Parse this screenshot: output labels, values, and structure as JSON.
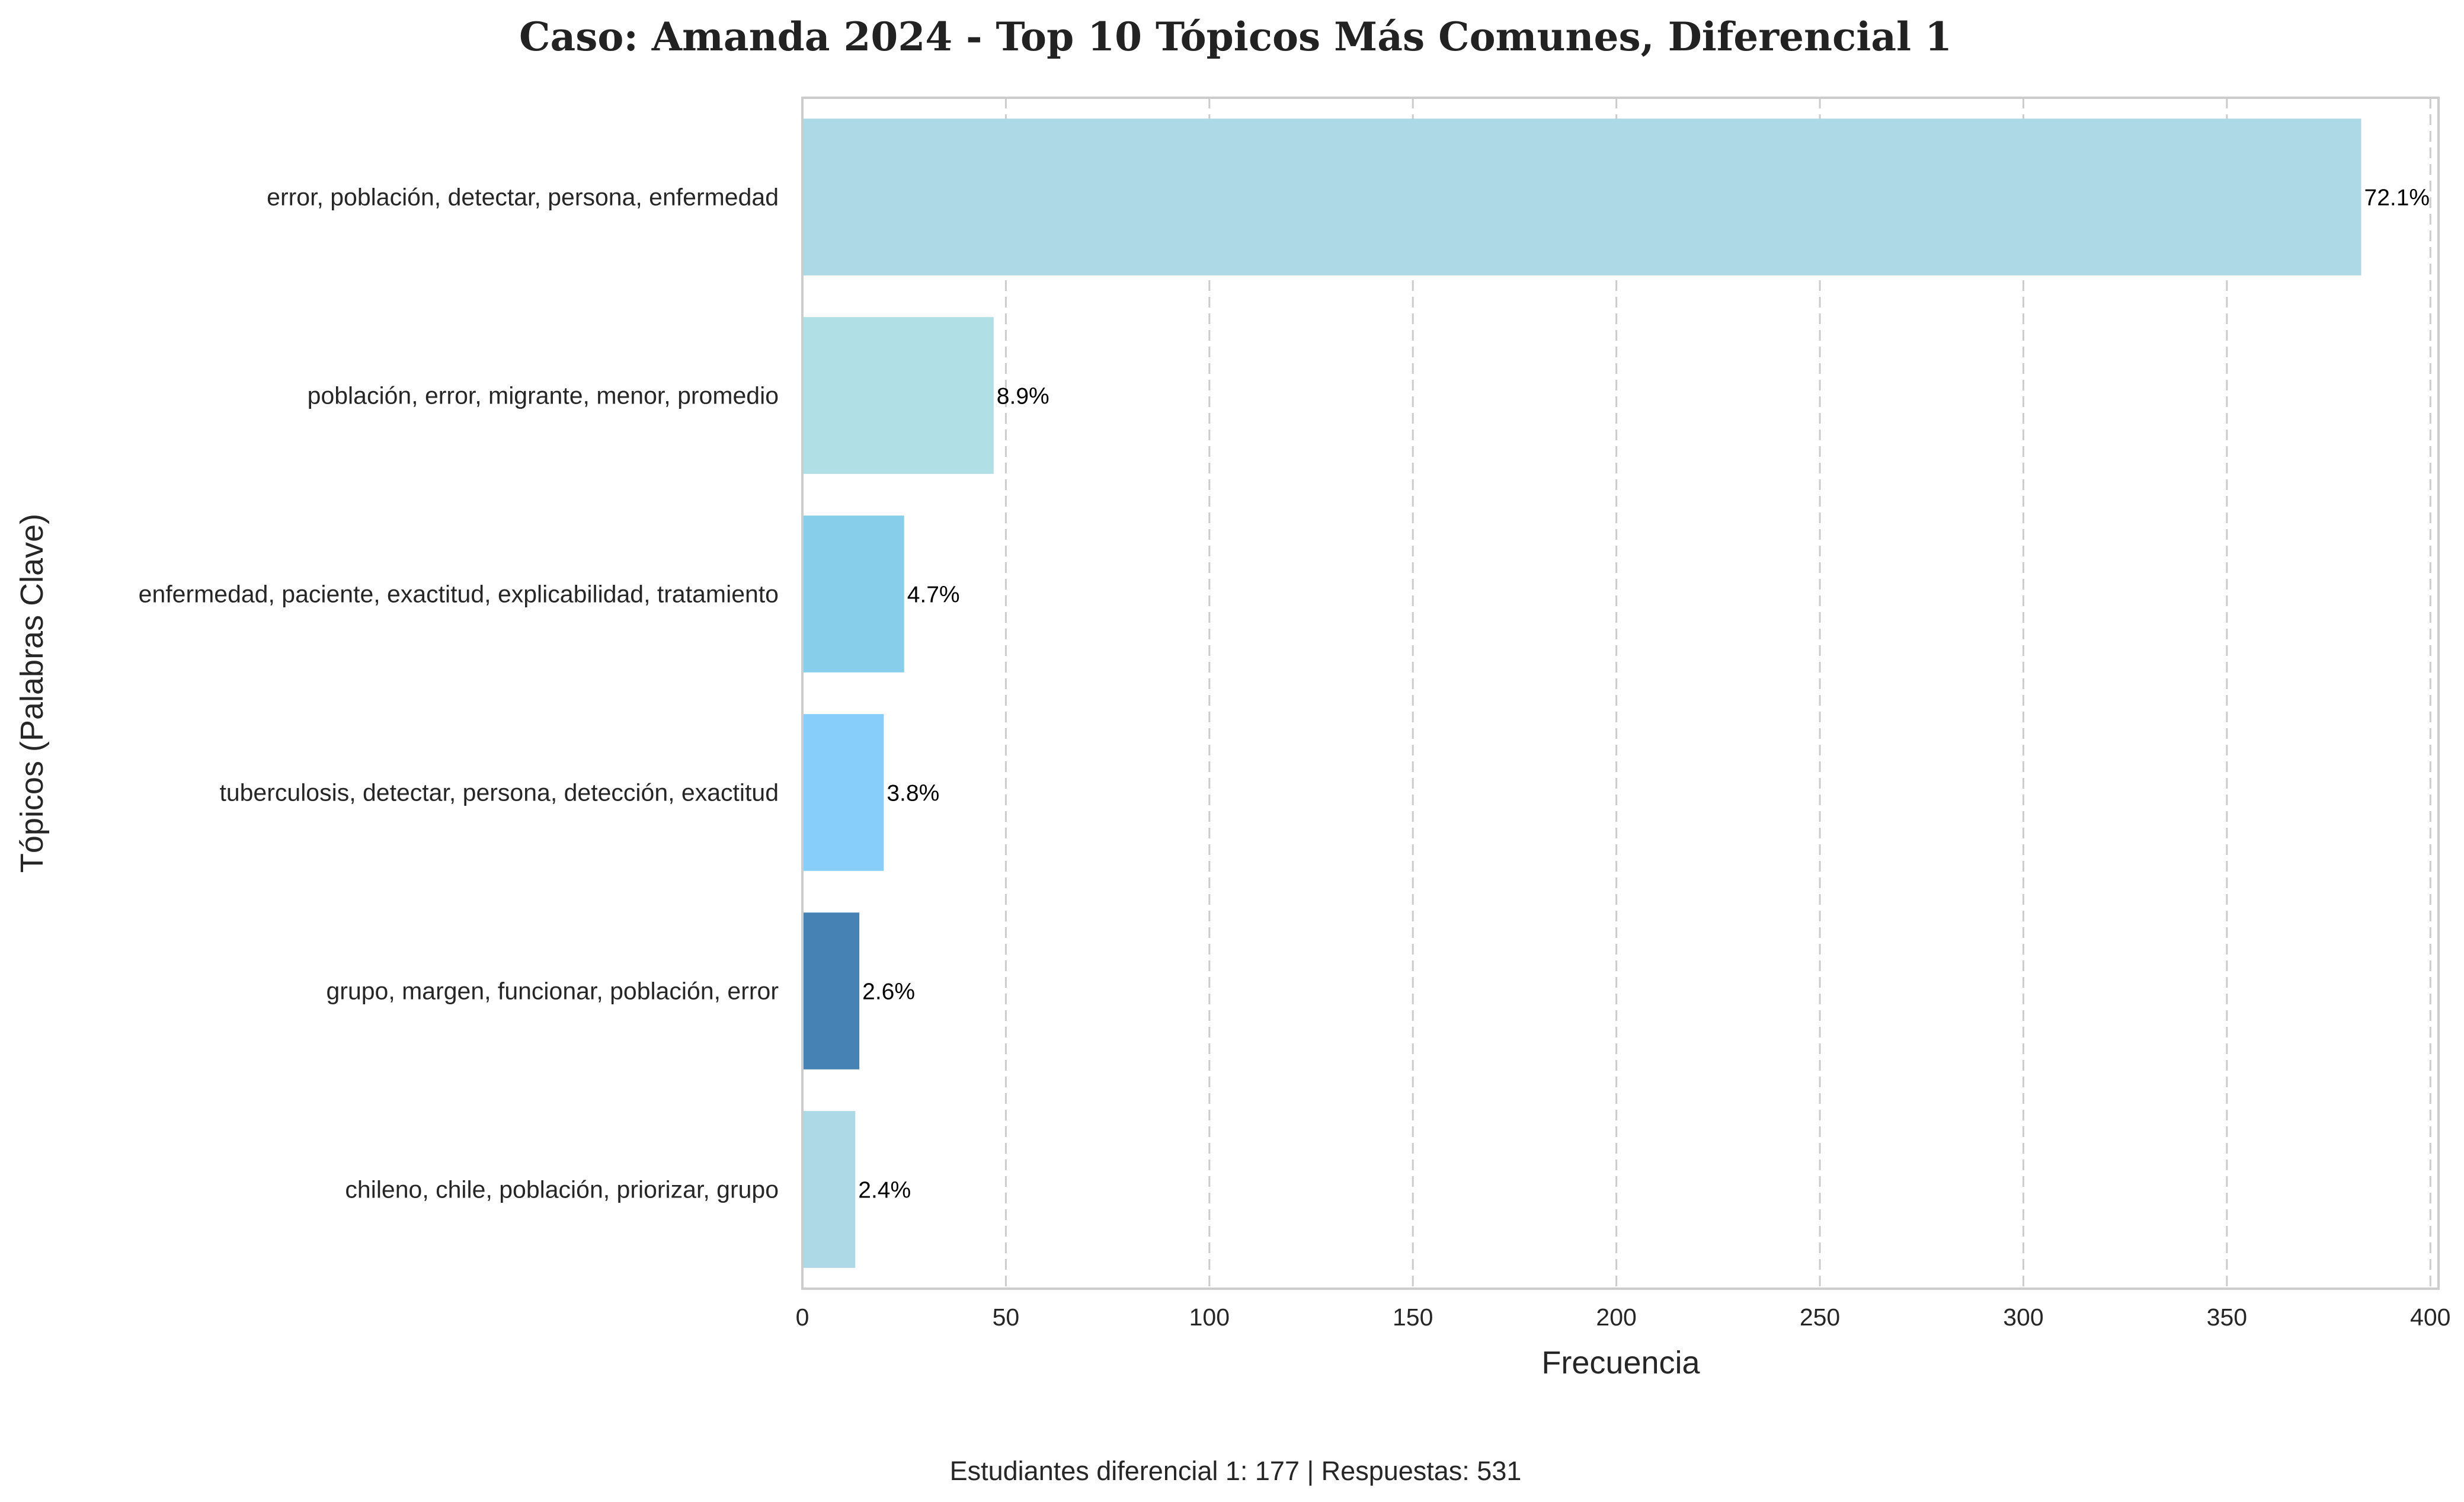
{
  "chart_data": {
    "type": "bar",
    "orientation": "horizontal",
    "title": "Caso: Amanda 2024 - Top 10 Tópicos Más Comunes, Diferencial 1",
    "xlabel": "Frecuencia",
    "ylabel": "Tópicos (Palabras Clave)",
    "xlim": [
      0,
      402
    ],
    "xticks": [
      "0",
      "50",
      "100",
      "150",
      "200",
      "250",
      "300",
      "350",
      "400"
    ],
    "grid": "vertical dashed",
    "categories": [
      "error, población, detectar, persona, enfermedad",
      "población, error, migrante, menor, promedio",
      "enfermedad, paciente, exactitud, explicabilidad, tratamiento",
      "tuberculosis, detectar, persona, detección, exactitud",
      "grupo, margen, funcionar, población, error",
      "chileno, chile, población, priorizar, grupo"
    ],
    "values": [
      383,
      47,
      25,
      20,
      14,
      13
    ],
    "data_labels": [
      "72.1%",
      "8.9%",
      "4.7%",
      "3.8%",
      "2.6%",
      "2.4%"
    ],
    "colors": [
      "#add8e6",
      "#b0dfe5",
      "#87ceeb",
      "#87cefa",
      "#4682b4",
      "#add8e6"
    ],
    "footer": "Estudiantes diferencial 1: 177 | Respuestas: 531"
  }
}
